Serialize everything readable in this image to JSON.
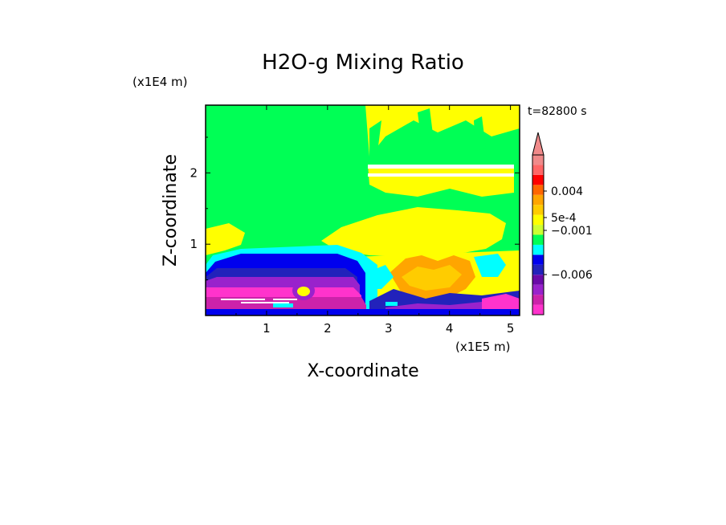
{
  "chart_data": {
    "type": "heatmap",
    "title": "H2O-g Mixing Ratio",
    "xlabel": "X-coordinate",
    "ylabel": "Z-coordinate",
    "x_scale_label": "(x1E5 m)",
    "y_scale_label": "(x1E4 m)",
    "time_label": "t=82800 s",
    "xlim": [
      0,
      5.15
    ],
    "ylim": [
      0,
      2.95
    ],
    "x_ticks": [
      "1",
      "2",
      "3",
      "4",
      "5"
    ],
    "y_ticks": [
      "1",
      "2"
    ],
    "colorbar": {
      "colors": [
        "#ff33cc",
        "#cc22aa",
        "#9922cc",
        "#6a0aa8",
        "#2222bb",
        "#0000ee",
        "#00ffff",
        "#00ff55",
        "#ccff33",
        "#ffff00",
        "#ffcc00",
        "#ffa500",
        "#ff6600",
        "#ff0000",
        "#ff6666",
        "#f08a8a"
      ],
      "labels": [
        "0.004",
        "5e-4",
        "−0.001",
        "−0.006"
      ],
      "extend": "max"
    },
    "regions_description": {
      "background_color": "#00ff55",
      "colors": {
        "yellow": "#ffff00",
        "orange": "#ffa500",
        "cyan": "#00ffff",
        "blue": "#0000ee",
        "navy": "#2222bb",
        "purple": "#9922cc",
        "magenta": "#ff33cc",
        "white": "#ffffff"
      }
    }
  }
}
